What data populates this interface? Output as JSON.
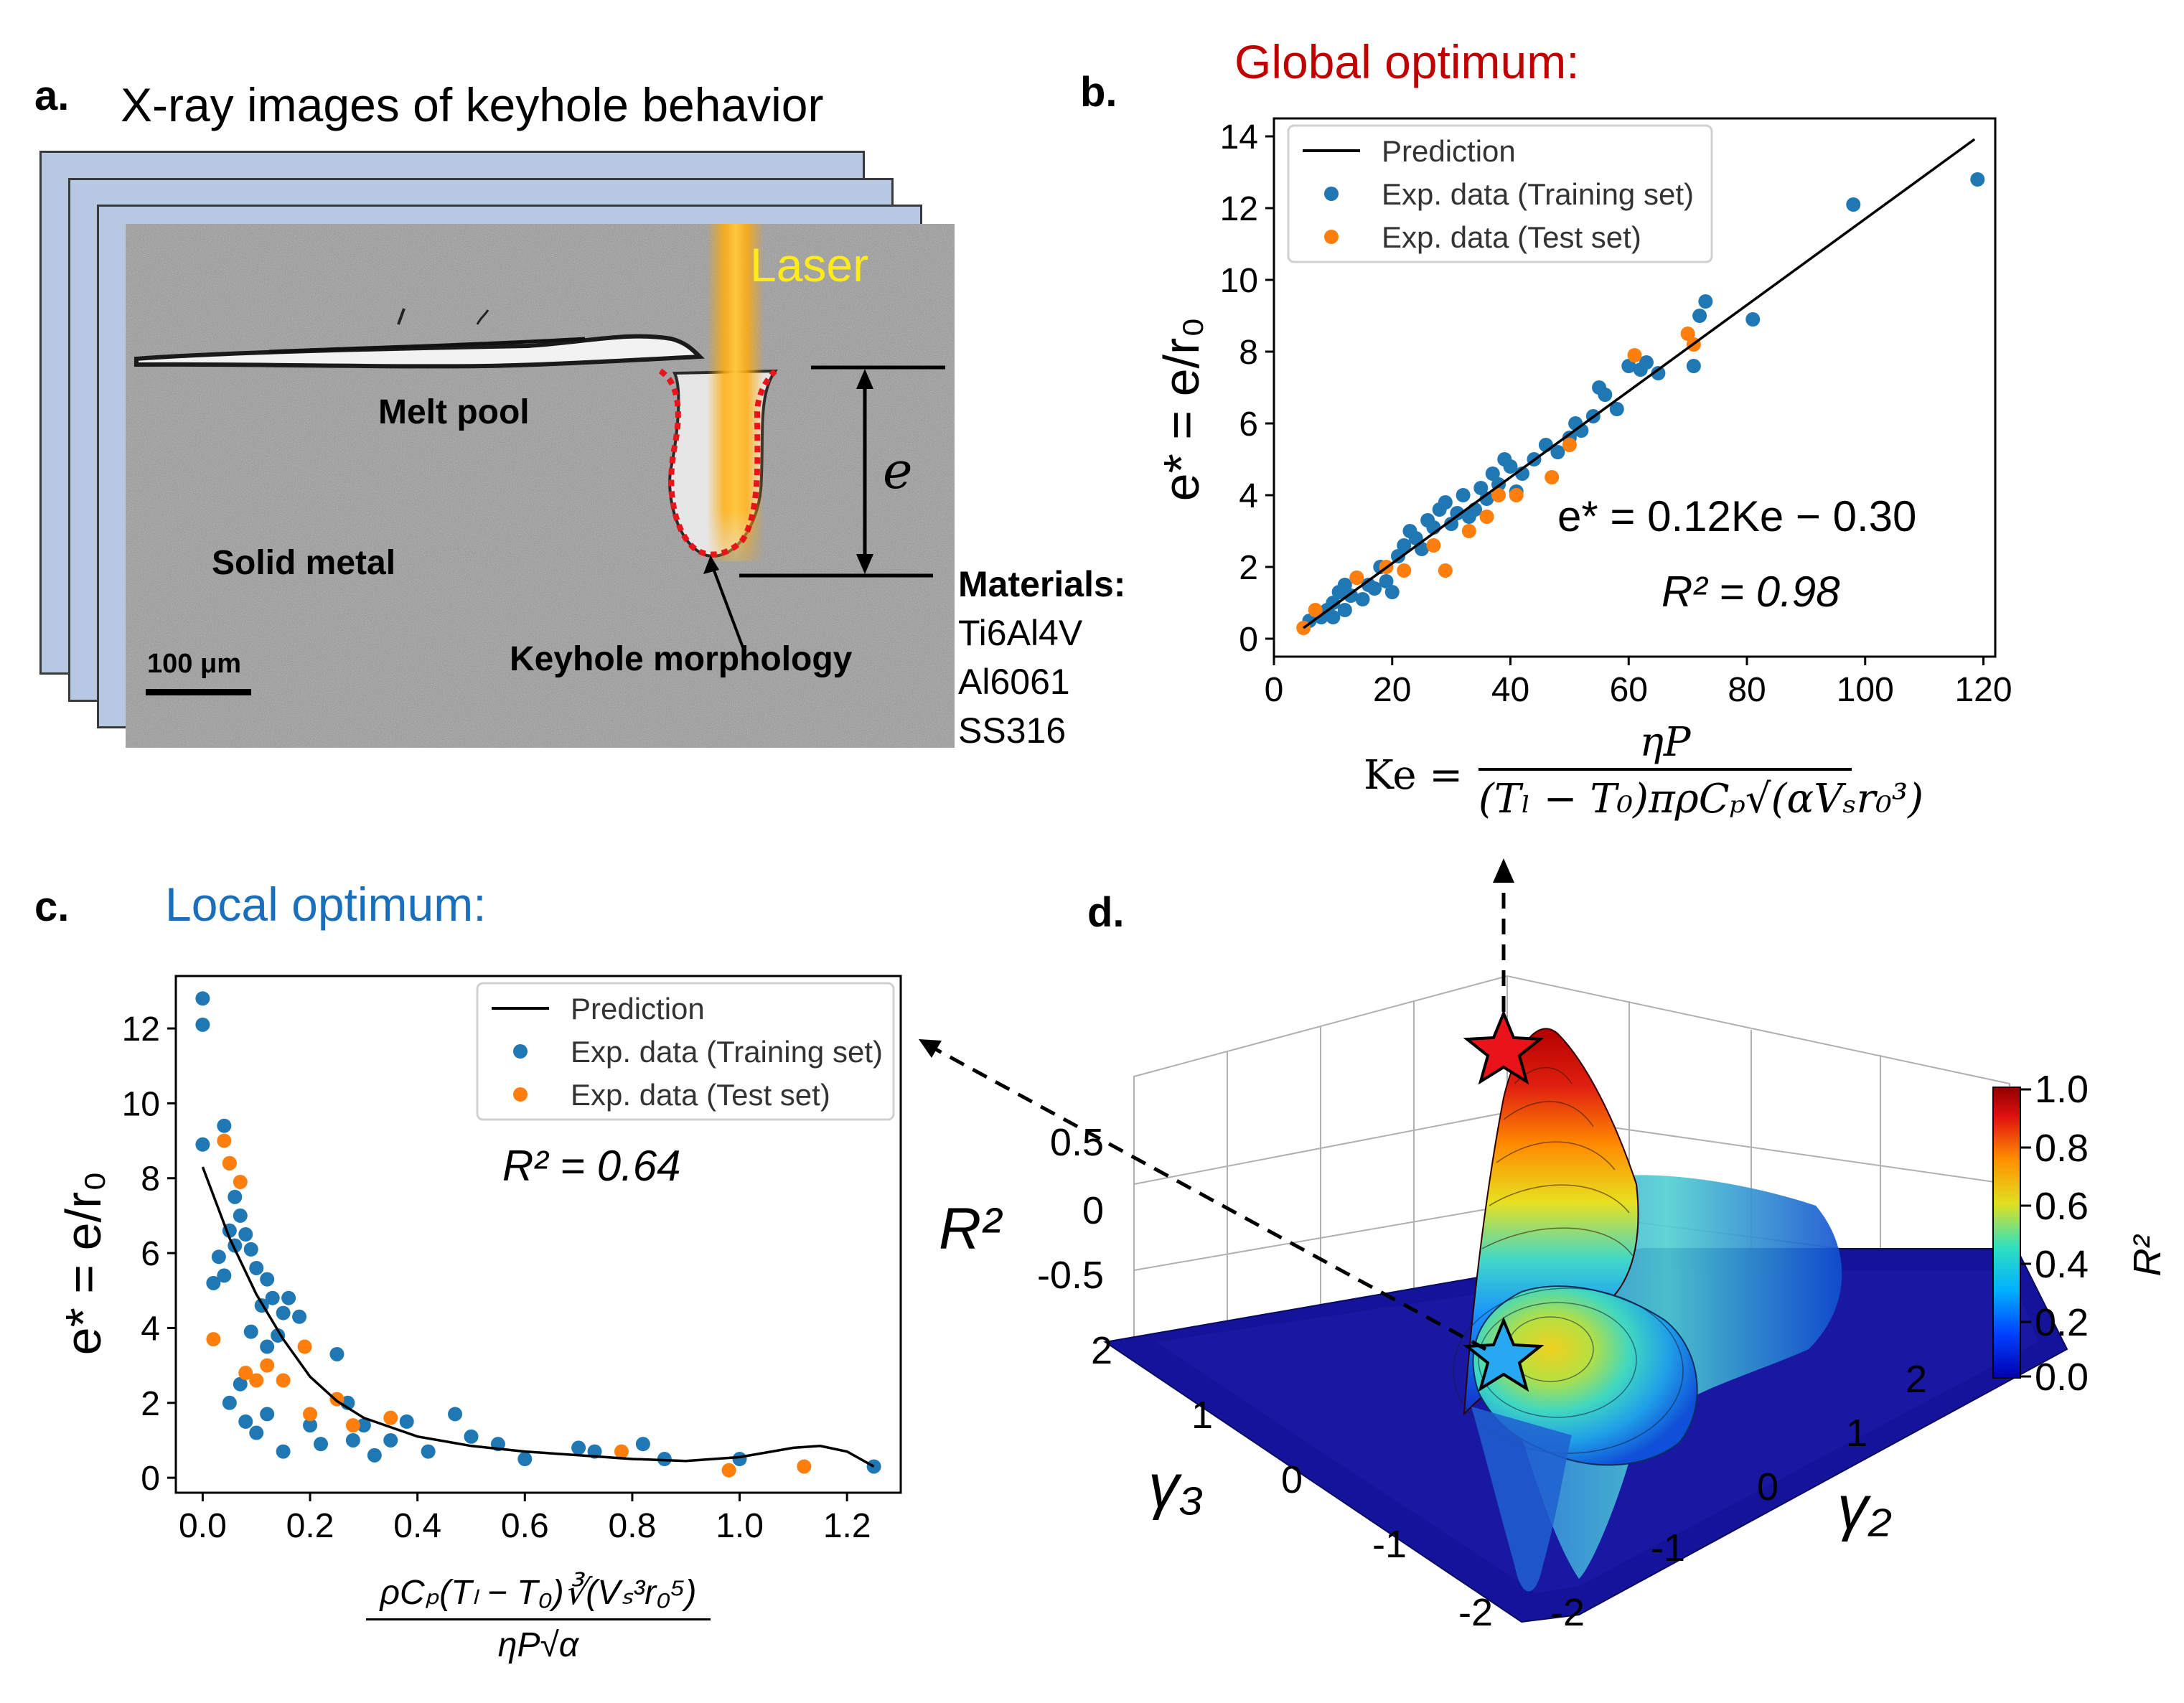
{
  "panel_a": {
    "letter": "a.",
    "title": "X-ray images of keyhole behavior",
    "laser_label": "Laser",
    "melt_pool_label": "Melt pool",
    "solid_metal_label": "Solid metal",
    "keyhole_label": "Keyhole morphology",
    "depth_symbol": "e",
    "scale_bar_label": "100 μm",
    "materials_title": "Materials:",
    "materials": [
      "Ti6Al4V",
      "Al6061",
      "SS316"
    ]
  },
  "panel_b": {
    "letter": "b.",
    "heading": "Global optimum:",
    "y_axis_label": "e* = e/r₀",
    "equation": "e* = 0.12Ke − 0.30",
    "r2": "R² = 0.98",
    "ke_equation": {
      "lhs": "Ke =",
      "numerator": "ηP",
      "denominator": "(Tₗ − T₀)πρCₚ√(αVₛr₀³)"
    }
  },
  "panel_c": {
    "letter": "c.",
    "heading": "Local optimum:",
    "y_axis_label": "e* = e/r₀",
    "r2": "R² = 0.64",
    "x_axis_numerator": "ρCₚ(Tₗ − T₀)∛(Vₛ³r₀⁵)",
    "x_axis_denominator": "ηP√α"
  },
  "panel_d": {
    "letter": "d.",
    "z_label": "R²",
    "z_ticks": [
      "0.5",
      "0",
      "-0.5"
    ],
    "gamma3_label": "γ₃",
    "gamma2_label": "γ₂",
    "gamma3_ticks": [
      "2",
      "1",
      "0",
      "-1",
      "-2"
    ],
    "gamma2_ticks": [
      "2",
      "1",
      "0",
      "-1",
      "-2"
    ],
    "colorbar_label": "R²",
    "colorbar_ticks": [
      "1.0",
      "0.8",
      "0.6",
      "0.4",
      "0.2",
      "0.0"
    ]
  },
  "colors": {
    "global": "#c00000",
    "local": "#1a6fbd",
    "train": "#1f77b4",
    "test": "#ff7f0e"
  },
  "chart_data": [
    {
      "type": "scatter",
      "title": "Global optimum:",
      "xlabel": "Ke",
      "ylabel": "e* = e/r₀",
      "xlim": [
        0,
        122
      ],
      "ylim": [
        -0.5,
        14.5
      ],
      "xticks": [
        0,
        20,
        40,
        60,
        80,
        100,
        120
      ],
      "yticks": [
        0,
        2,
        4,
        6,
        8,
        10,
        12,
        14
      ],
      "legend": [
        "Prediction",
        "Exp. data (Training set)",
        "Exp. data (Test set)"
      ],
      "legend_position": "top-left",
      "line": {
        "name": "Prediction",
        "points": [
          [
            5,
            0.3
          ],
          [
            118.5,
            13.92
          ]
        ]
      },
      "series": [
        {
          "name": "Exp. data (Training set)",
          "points": [
            [
              6,
              0.5
            ],
            [
              8,
              0.6
            ],
            [
              9,
              0.8
            ],
            [
              10,
              1.0
            ],
            [
              10,
              0.6
            ],
            [
              11,
              1.3
            ],
            [
              12,
              1.5
            ],
            [
              12,
              0.8
            ],
            [
              13,
              1.2
            ],
            [
              14,
              1.7
            ],
            [
              15,
              1.1
            ],
            [
              16,
              1.5
            ],
            [
              17,
              1.4
            ],
            [
              18,
              2.0
            ],
            [
              19,
              1.6
            ],
            [
              20,
              1.3
            ],
            [
              21,
              2.3
            ],
            [
              22,
              2.6
            ],
            [
              23,
              3.0
            ],
            [
              24,
              2.8
            ],
            [
              25,
              2.5
            ],
            [
              26,
              3.3
            ],
            [
              27,
              3.1
            ],
            [
              28,
              3.6
            ],
            [
              29,
              3.8
            ],
            [
              30,
              3.2
            ],
            [
              31,
              3.5
            ],
            [
              32,
              4.0
            ],
            [
              33,
              3.4
            ],
            [
              34,
              3.6
            ],
            [
              35,
              4.2
            ],
            [
              36,
              3.9
            ],
            [
              37,
              4.6
            ],
            [
              38,
              4.3
            ],
            [
              39,
              5.0
            ],
            [
              40,
              4.8
            ],
            [
              41,
              4.1
            ],
            [
              42,
              4.6
            ],
            [
              44,
              5.0
            ],
            [
              46,
              5.4
            ],
            [
              48,
              5.2
            ],
            [
              50,
              5.6
            ],
            [
              51,
              6.0
            ],
            [
              52,
              5.8
            ],
            [
              54,
              6.2
            ],
            [
              55,
              7.0
            ],
            [
              56,
              6.8
            ],
            [
              58,
              6.4
            ],
            [
              60,
              7.6
            ],
            [
              62,
              7.5
            ],
            [
              63,
              7.7
            ],
            [
              65,
              7.4
            ],
            [
              71,
              7.6
            ],
            [
              72,
              9.0
            ],
            [
              73,
              9.4
            ],
            [
              81,
              8.9
            ],
            [
              98,
              12.1
            ],
            [
              119,
              12.8
            ]
          ]
        },
        {
          "name": "Exp. data (Test set)",
          "points": [
            [
              5,
              0.3
            ],
            [
              7,
              0.8
            ],
            [
              14,
              1.7
            ],
            [
              19,
              2.0
            ],
            [
              22,
              1.9
            ],
            [
              27,
              2.6
            ],
            [
              29,
              1.9
            ],
            [
              33,
              3.0
            ],
            [
              36,
              3.4
            ],
            [
              38,
              4.0
            ],
            [
              41,
              4.0
            ],
            [
              47,
              4.5
            ],
            [
              50,
              5.4
            ],
            [
              61,
              7.9
            ],
            [
              70,
              8.5
            ],
            [
              71,
              8.2
            ]
          ]
        }
      ],
      "annotations": [
        "e* = 0.12Ke − 0.30",
        "R² = 0.98"
      ]
    },
    {
      "type": "scatter",
      "title": "Local optimum:",
      "xlabel": "ρCₚ(Tₗ − T₀)∛(Vₛ³r₀⁵) / ηP√α",
      "ylabel": "e* = e/r₀",
      "xlim": [
        -0.05,
        1.3
      ],
      "ylim": [
        -0.4,
        13.4
      ],
      "xticks": [
        0.0,
        0.2,
        0.4,
        0.6,
        0.8,
        1.0,
        1.2
      ],
      "yticks": [
        0,
        2,
        4,
        6,
        8,
        10,
        12
      ],
      "legend": [
        "Prediction",
        "Exp. data (Training set)",
        "Exp. data (Test set)"
      ],
      "legend_position": "top-right",
      "line": {
        "name": "Prediction",
        "points": [
          [
            0.0,
            8.3
          ],
          [
            0.05,
            6.4
          ],
          [
            0.1,
            4.9
          ],
          [
            0.15,
            3.7
          ],
          [
            0.2,
            2.7
          ],
          [
            0.25,
            2.05
          ],
          [
            0.3,
            1.6
          ],
          [
            0.4,
            1.1
          ],
          [
            0.5,
            0.85
          ],
          [
            0.6,
            0.7
          ],
          [
            0.7,
            0.6
          ],
          [
            0.8,
            0.5
          ],
          [
            0.9,
            0.45
          ],
          [
            1.0,
            0.55
          ],
          [
            1.1,
            0.8
          ],
          [
            1.15,
            0.85
          ],
          [
            1.2,
            0.7
          ],
          [
            1.25,
            0.3
          ]
        ]
      },
      "series": [
        {
          "name": "Exp. data (Training set)",
          "points": [
            [
              0.0,
              12.8
            ],
            [
              0.0,
              12.1
            ],
            [
              0.0,
              8.9
            ],
            [
              0.04,
              9.4
            ],
            [
              0.05,
              8.4
            ],
            [
              0.06,
              7.5
            ],
            [
              0.07,
              7.0
            ],
            [
              0.05,
              6.6
            ],
            [
              0.06,
              6.2
            ],
            [
              0.03,
              5.9
            ],
            [
              0.04,
              5.4
            ],
            [
              0.02,
              5.2
            ],
            [
              0.08,
              6.5
            ],
            [
              0.09,
              6.1
            ],
            [
              0.1,
              5.6
            ],
            [
              0.12,
              5.3
            ],
            [
              0.13,
              4.8
            ],
            [
              0.11,
              4.6
            ],
            [
              0.15,
              4.4
            ],
            [
              0.09,
              3.9
            ],
            [
              0.12,
              3.5
            ],
            [
              0.14,
              3.8
            ],
            [
              0.16,
              4.8
            ],
            [
              0.18,
              4.3
            ],
            [
              0.07,
              2.5
            ],
            [
              0.05,
              2.0
            ],
            [
              0.08,
              1.5
            ],
            [
              0.1,
              1.2
            ],
            [
              0.12,
              1.7
            ],
            [
              0.15,
              0.7
            ],
            [
              0.2,
              1.4
            ],
            [
              0.22,
              0.9
            ],
            [
              0.25,
              3.3
            ],
            [
              0.27,
              2.0
            ],
            [
              0.28,
              1.0
            ],
            [
              0.3,
              1.4
            ],
            [
              0.32,
              0.6
            ],
            [
              0.35,
              1.0
            ],
            [
              0.38,
              1.5
            ],
            [
              0.42,
              0.7
            ],
            [
              0.47,
              1.7
            ],
            [
              0.5,
              1.1
            ],
            [
              0.55,
              0.9
            ],
            [
              0.6,
              0.5
            ],
            [
              0.7,
              0.8
            ],
            [
              0.73,
              0.7
            ],
            [
              0.82,
              0.9
            ],
            [
              0.86,
              0.5
            ],
            [
              1.0,
              0.5
            ],
            [
              1.25,
              0.3
            ]
          ]
        },
        {
          "name": "Exp. data (Test set)",
          "points": [
            [
              0.04,
              9.0
            ],
            [
              0.05,
              8.4
            ],
            [
              0.07,
              7.9
            ],
            [
              0.02,
              3.7
            ],
            [
              0.08,
              2.8
            ],
            [
              0.1,
              2.6
            ],
            [
              0.12,
              3.0
            ],
            [
              0.15,
              2.6
            ],
            [
              0.19,
              3.5
            ],
            [
              0.2,
              1.7
            ],
            [
              0.25,
              2.1
            ],
            [
              0.28,
              1.4
            ],
            [
              0.35,
              1.6
            ],
            [
              0.78,
              0.7
            ],
            [
              0.98,
              0.2
            ],
            [
              1.12,
              0.3
            ]
          ]
        }
      ],
      "annotations": [
        "R² = 0.64"
      ]
    }
  ]
}
